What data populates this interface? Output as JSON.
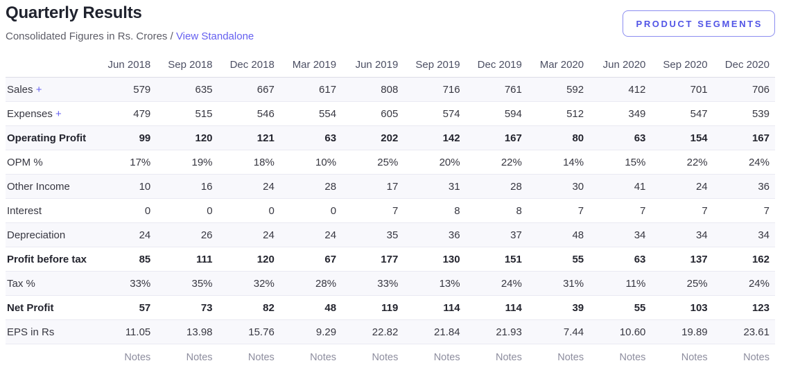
{
  "header": {
    "title": "Quarterly Results",
    "subtitle_prefix": "Consolidated Figures in Rs. Crores /",
    "standalone_link_label": "View Standalone",
    "segments_button_label": "PRODUCT SEGMENTS"
  },
  "colors": {
    "accent": "#645ff0",
    "stripe": "#f8f8fc",
    "row_border": "#e9e9f2",
    "title_text": "#20232e",
    "muted_text": "#8d8d9e"
  },
  "table": {
    "columns": [
      "Jun 2018",
      "Sep 2018",
      "Dec 2018",
      "Mar 2019",
      "Jun 2019",
      "Sep 2019",
      "Dec 2019",
      "Mar 2020",
      "Jun 2020",
      "Sep 2020",
      "Dec 2020"
    ],
    "rows": [
      {
        "label": "Sales",
        "expandable": true,
        "bold": false,
        "values": [
          "579",
          "635",
          "667",
          "617",
          "808",
          "716",
          "761",
          "592",
          "412",
          "701",
          "706"
        ]
      },
      {
        "label": "Expenses",
        "expandable": true,
        "bold": false,
        "values": [
          "479",
          "515",
          "546",
          "554",
          "605",
          "574",
          "594",
          "512",
          "349",
          "547",
          "539"
        ]
      },
      {
        "label": "Operating Profit",
        "expandable": false,
        "bold": true,
        "values": [
          "99",
          "120",
          "121",
          "63",
          "202",
          "142",
          "167",
          "80",
          "63",
          "154",
          "167"
        ]
      },
      {
        "label": "OPM %",
        "expandable": false,
        "bold": false,
        "values": [
          "17%",
          "19%",
          "18%",
          "10%",
          "25%",
          "20%",
          "22%",
          "14%",
          "15%",
          "22%",
          "24%"
        ]
      },
      {
        "label": "Other Income",
        "expandable": false,
        "bold": false,
        "values": [
          "10",
          "16",
          "24",
          "28",
          "17",
          "31",
          "28",
          "30",
          "41",
          "24",
          "36"
        ]
      },
      {
        "label": "Interest",
        "expandable": false,
        "bold": false,
        "values": [
          "0",
          "0",
          "0",
          "0",
          "7",
          "8",
          "8",
          "7",
          "7",
          "7",
          "7"
        ]
      },
      {
        "label": "Depreciation",
        "expandable": false,
        "bold": false,
        "values": [
          "24",
          "26",
          "24",
          "24",
          "35",
          "36",
          "37",
          "48",
          "34",
          "34",
          "34"
        ]
      },
      {
        "label": "Profit before tax",
        "expandable": false,
        "bold": true,
        "values": [
          "85",
          "111",
          "120",
          "67",
          "177",
          "130",
          "151",
          "55",
          "63",
          "137",
          "162"
        ]
      },
      {
        "label": "Tax %",
        "expandable": false,
        "bold": false,
        "values": [
          "33%",
          "35%",
          "32%",
          "28%",
          "33%",
          "13%",
          "24%",
          "31%",
          "11%",
          "25%",
          "24%"
        ]
      },
      {
        "label": "Net Profit",
        "expandable": false,
        "bold": true,
        "values": [
          "57",
          "73",
          "82",
          "48",
          "119",
          "114",
          "114",
          "39",
          "55",
          "103",
          "123"
        ]
      },
      {
        "label": "EPS in Rs",
        "expandable": false,
        "bold": false,
        "values": [
          "11.05",
          "13.98",
          "15.76",
          "9.29",
          "22.82",
          "21.84",
          "21.93",
          "7.44",
          "10.60",
          "19.89",
          "23.61"
        ]
      }
    ],
    "notes_label": "Notes",
    "expand_icon": "+"
  }
}
